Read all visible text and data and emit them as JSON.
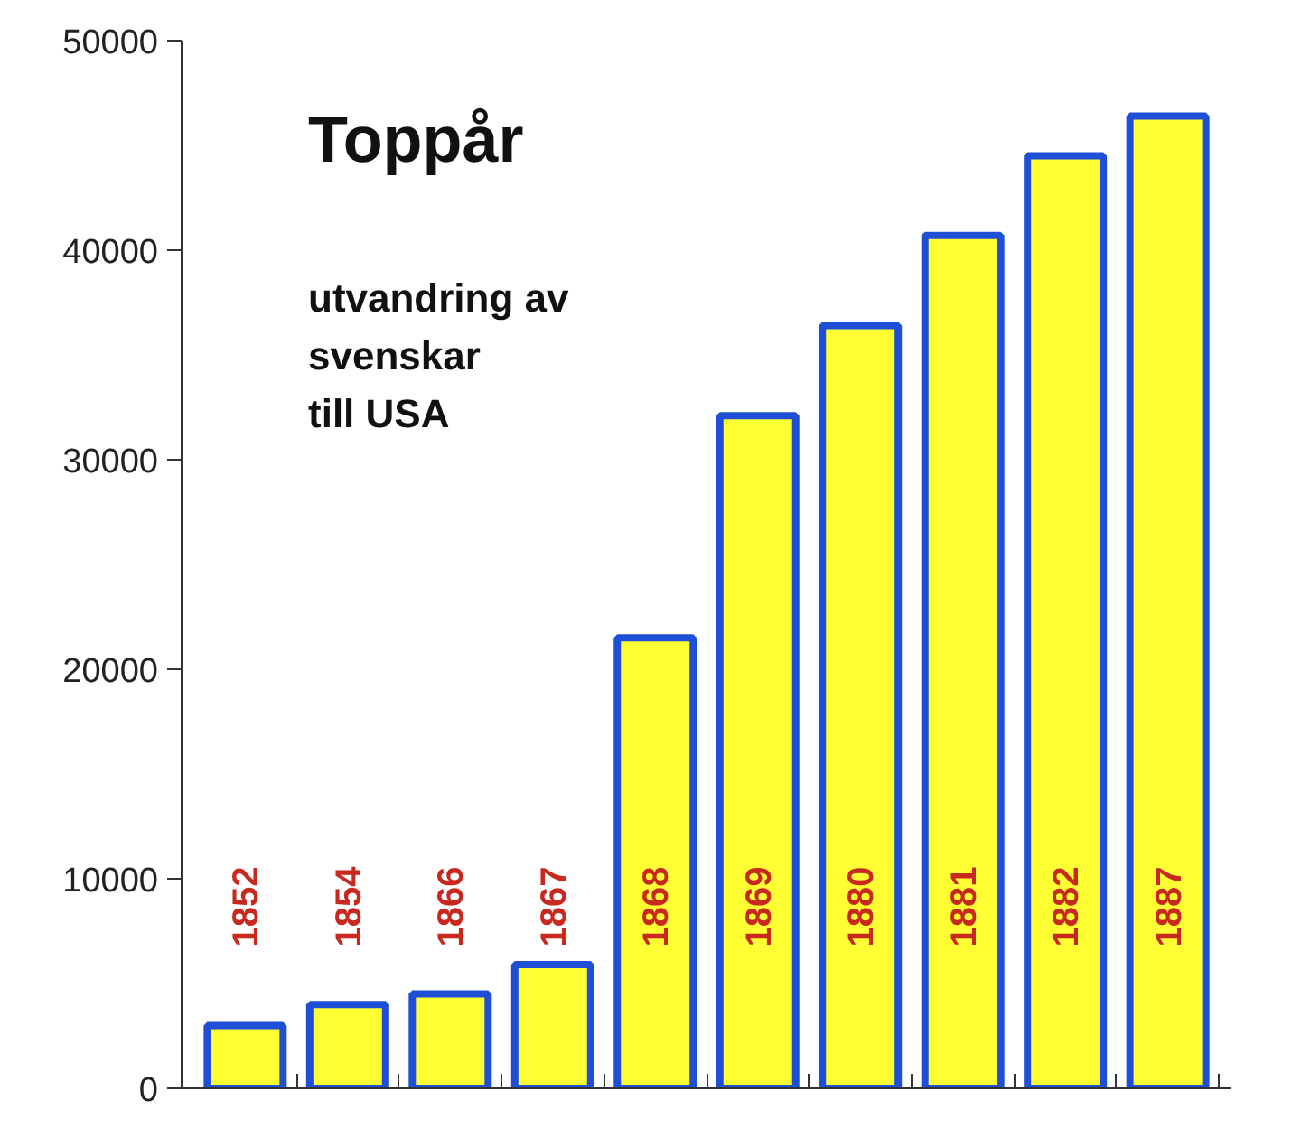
{
  "chart_data": {
    "type": "bar",
    "title": "Toppår",
    "subtitle": "utvandring av\nsvenskar\ntill USA",
    "categories": [
      "1852",
      "1854",
      "1866",
      "1867",
      "1868",
      "1869",
      "1880",
      "1881",
      "1882",
      "1887"
    ],
    "values": [
      3000,
      4000,
      4500,
      5900,
      21500,
      32100,
      36400,
      40700,
      44500,
      46400
    ],
    "color": "#ffff33",
    "ylim": [
      0,
      50000
    ],
    "yticks": [
      0,
      10000,
      20000,
      30000,
      40000,
      50000
    ],
    "grid": false
  }
}
